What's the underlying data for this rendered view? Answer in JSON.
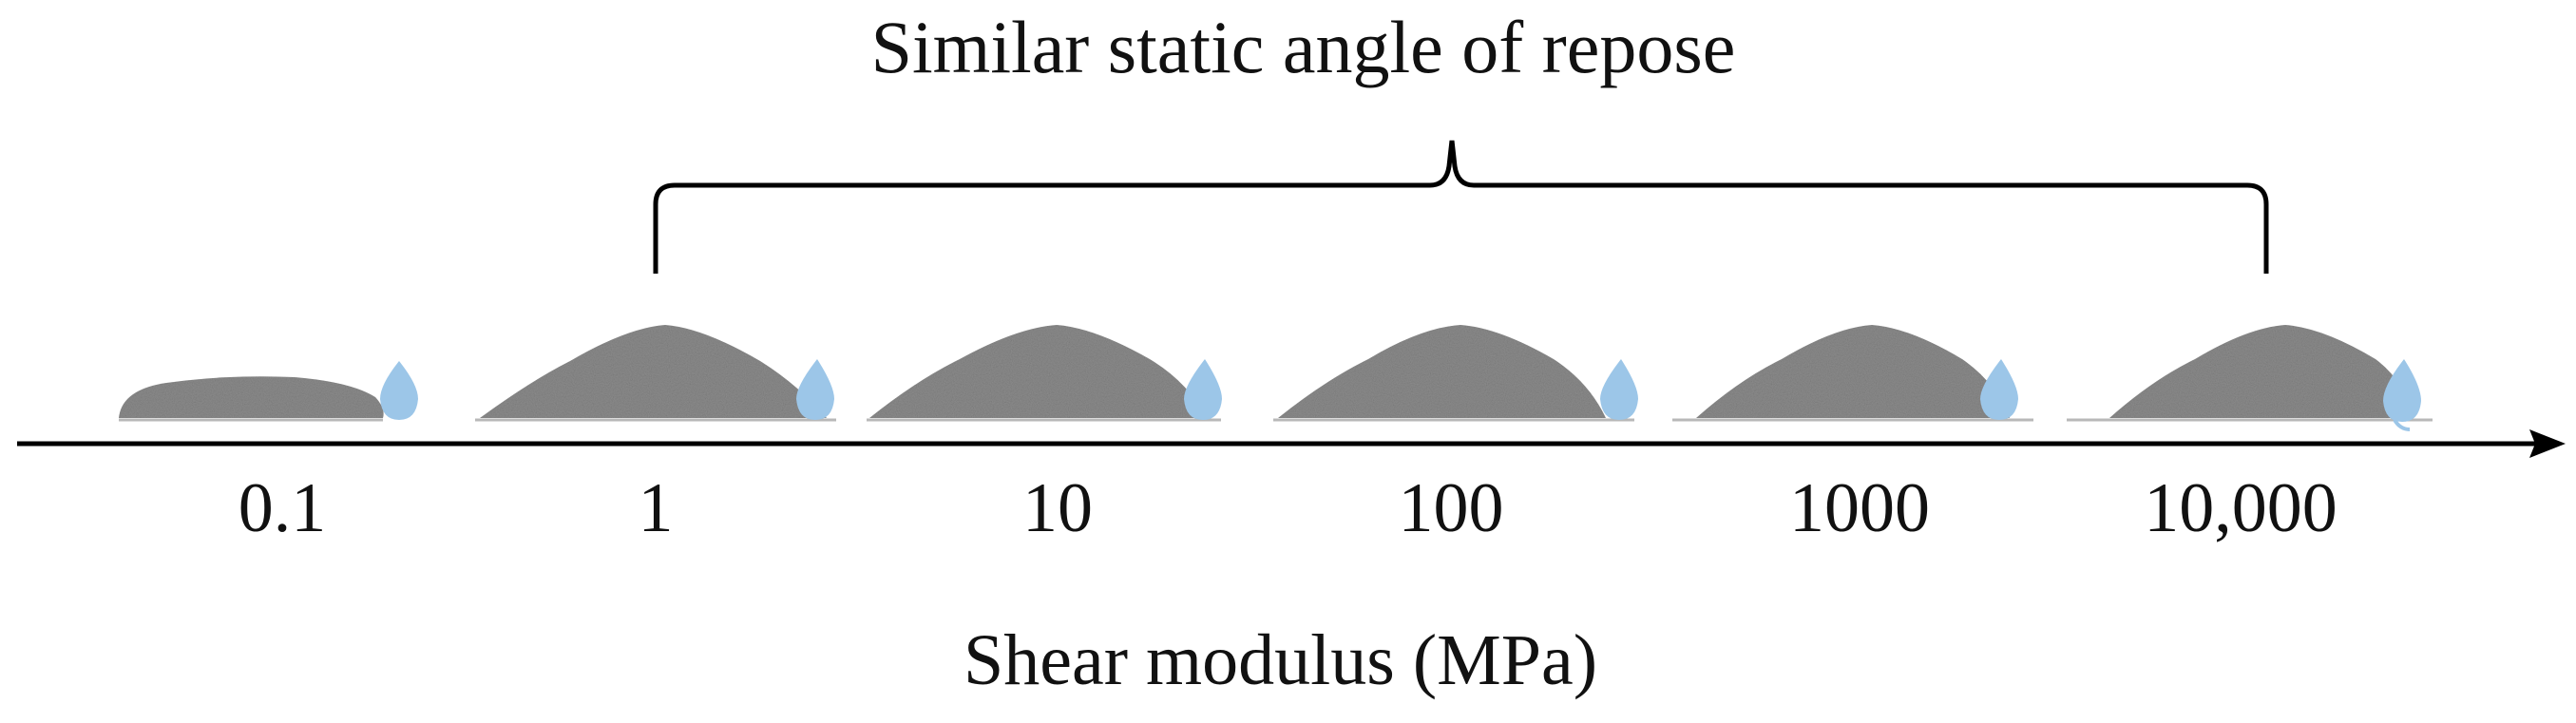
{
  "title": "Similar static angle of repose",
  "x_axis": {
    "label": "Shear modulus (MPa)",
    "ticks": [
      "0.1",
      "1",
      "10",
      "100",
      "1000",
      "10,000"
    ]
  },
  "piles": [
    {
      "shear_modulus": "0.1",
      "shape": "flat-pile"
    },
    {
      "shear_modulus": "1",
      "shape": "cone-pile"
    },
    {
      "shear_modulus": "10",
      "shape": "cone-pile"
    },
    {
      "shear_modulus": "100",
      "shape": "cone-pile"
    },
    {
      "shear_modulus": "1000",
      "shape": "cone-pile"
    },
    {
      "shear_modulus": "10,000",
      "shape": "cone-pile"
    }
  ],
  "colors": {
    "text": "#111111",
    "axis": "#000000",
    "pile": "#8c8c8c",
    "droplet": "#9cc6e8"
  },
  "icons": [
    "droplet-icon",
    "axis-arrowhead",
    "bracket"
  ]
}
